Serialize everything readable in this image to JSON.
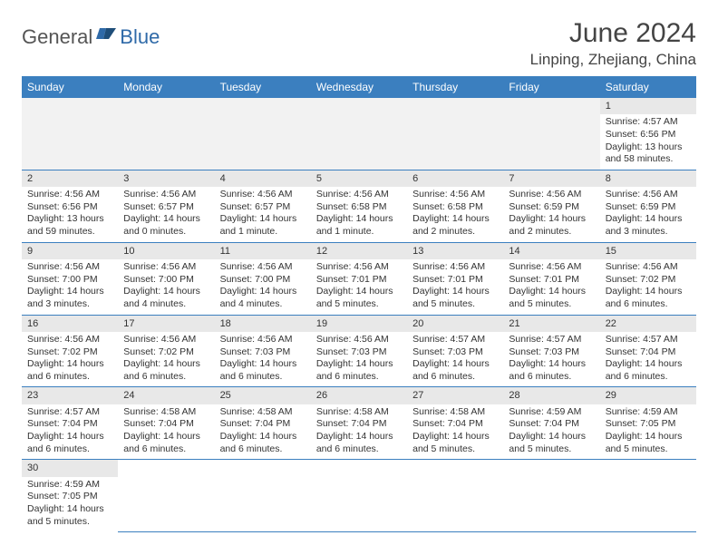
{
  "brand": {
    "part1": "General",
    "part2": "Blue"
  },
  "title": "June 2024",
  "location": "Linping, Zhejiang, China",
  "header_bg": "#3b7fbf",
  "weekdays": [
    "Sunday",
    "Monday",
    "Tuesday",
    "Wednesday",
    "Thursday",
    "Friday",
    "Saturday"
  ],
  "first_weekday_index": 6,
  "days": [
    {
      "n": 1,
      "sunrise": "4:57 AM",
      "sunset": "6:56 PM",
      "daylight": "13 hours and 58 minutes."
    },
    {
      "n": 2,
      "sunrise": "4:56 AM",
      "sunset": "6:56 PM",
      "daylight": "13 hours and 59 minutes."
    },
    {
      "n": 3,
      "sunrise": "4:56 AM",
      "sunset": "6:57 PM",
      "daylight": "14 hours and 0 minutes."
    },
    {
      "n": 4,
      "sunrise": "4:56 AM",
      "sunset": "6:57 PM",
      "daylight": "14 hours and 1 minute."
    },
    {
      "n": 5,
      "sunrise": "4:56 AM",
      "sunset": "6:58 PM",
      "daylight": "14 hours and 1 minute."
    },
    {
      "n": 6,
      "sunrise": "4:56 AM",
      "sunset": "6:58 PM",
      "daylight": "14 hours and 2 minutes."
    },
    {
      "n": 7,
      "sunrise": "4:56 AM",
      "sunset": "6:59 PM",
      "daylight": "14 hours and 2 minutes."
    },
    {
      "n": 8,
      "sunrise": "4:56 AM",
      "sunset": "6:59 PM",
      "daylight": "14 hours and 3 minutes."
    },
    {
      "n": 9,
      "sunrise": "4:56 AM",
      "sunset": "7:00 PM",
      "daylight": "14 hours and 3 minutes."
    },
    {
      "n": 10,
      "sunrise": "4:56 AM",
      "sunset": "7:00 PM",
      "daylight": "14 hours and 4 minutes."
    },
    {
      "n": 11,
      "sunrise": "4:56 AM",
      "sunset": "7:00 PM",
      "daylight": "14 hours and 4 minutes."
    },
    {
      "n": 12,
      "sunrise": "4:56 AM",
      "sunset": "7:01 PM",
      "daylight": "14 hours and 5 minutes."
    },
    {
      "n": 13,
      "sunrise": "4:56 AM",
      "sunset": "7:01 PM",
      "daylight": "14 hours and 5 minutes."
    },
    {
      "n": 14,
      "sunrise": "4:56 AM",
      "sunset": "7:01 PM",
      "daylight": "14 hours and 5 minutes."
    },
    {
      "n": 15,
      "sunrise": "4:56 AM",
      "sunset": "7:02 PM",
      "daylight": "14 hours and 6 minutes."
    },
    {
      "n": 16,
      "sunrise": "4:56 AM",
      "sunset": "7:02 PM",
      "daylight": "14 hours and 6 minutes."
    },
    {
      "n": 17,
      "sunrise": "4:56 AM",
      "sunset": "7:02 PM",
      "daylight": "14 hours and 6 minutes."
    },
    {
      "n": 18,
      "sunrise": "4:56 AM",
      "sunset": "7:03 PM",
      "daylight": "14 hours and 6 minutes."
    },
    {
      "n": 19,
      "sunrise": "4:56 AM",
      "sunset": "7:03 PM",
      "daylight": "14 hours and 6 minutes."
    },
    {
      "n": 20,
      "sunrise": "4:57 AM",
      "sunset": "7:03 PM",
      "daylight": "14 hours and 6 minutes."
    },
    {
      "n": 21,
      "sunrise": "4:57 AM",
      "sunset": "7:03 PM",
      "daylight": "14 hours and 6 minutes."
    },
    {
      "n": 22,
      "sunrise": "4:57 AM",
      "sunset": "7:04 PM",
      "daylight": "14 hours and 6 minutes."
    },
    {
      "n": 23,
      "sunrise": "4:57 AM",
      "sunset": "7:04 PM",
      "daylight": "14 hours and 6 minutes."
    },
    {
      "n": 24,
      "sunrise": "4:58 AM",
      "sunset": "7:04 PM",
      "daylight": "14 hours and 6 minutes."
    },
    {
      "n": 25,
      "sunrise": "4:58 AM",
      "sunset": "7:04 PM",
      "daylight": "14 hours and 6 minutes."
    },
    {
      "n": 26,
      "sunrise": "4:58 AM",
      "sunset": "7:04 PM",
      "daylight": "14 hours and 6 minutes."
    },
    {
      "n": 27,
      "sunrise": "4:58 AM",
      "sunset": "7:04 PM",
      "daylight": "14 hours and 5 minutes."
    },
    {
      "n": 28,
      "sunrise": "4:59 AM",
      "sunset": "7:04 PM",
      "daylight": "14 hours and 5 minutes."
    },
    {
      "n": 29,
      "sunrise": "4:59 AM",
      "sunset": "7:05 PM",
      "daylight": "14 hours and 5 minutes."
    },
    {
      "n": 30,
      "sunrise": "4:59 AM",
      "sunset": "7:05 PM",
      "daylight": "14 hours and 5 minutes."
    }
  ],
  "labels": {
    "sunrise": "Sunrise:",
    "sunset": "Sunset:",
    "daylight": "Daylight:"
  }
}
